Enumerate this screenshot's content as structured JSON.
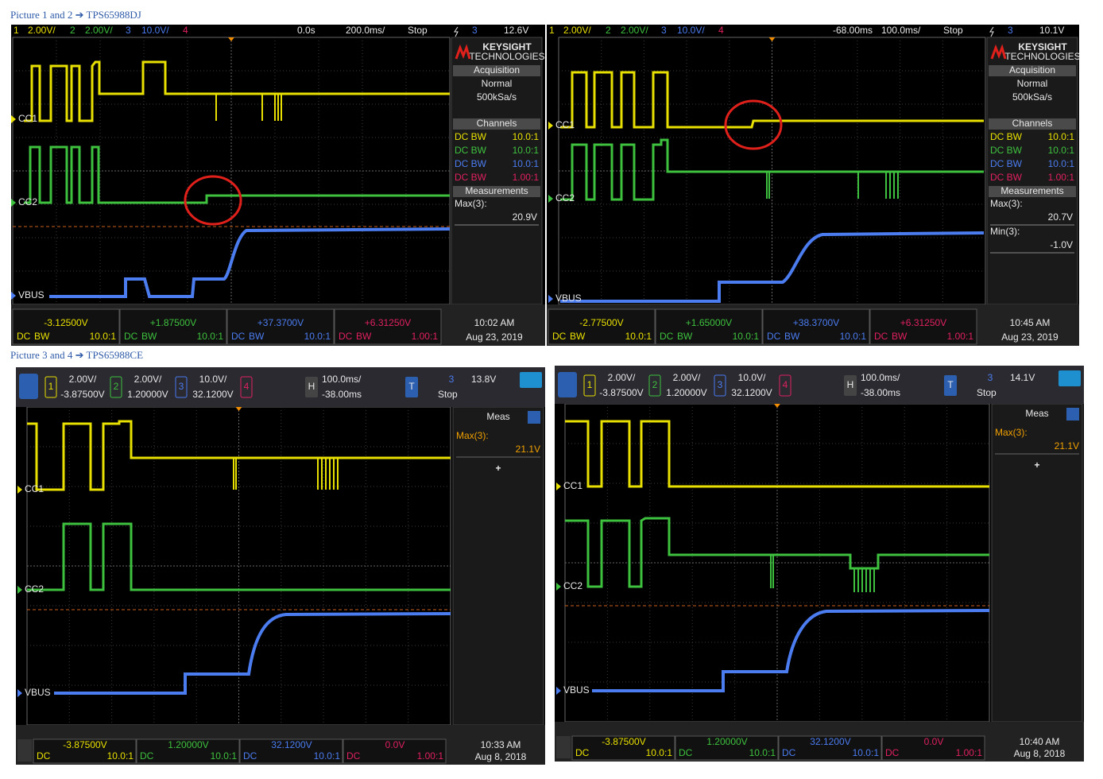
{
  "captions": [
    "Picture 1 and 2 ➔ TPS65988DJ",
    "Picture 3 and 4 ➔ TPS65988CE"
  ],
  "scopes": [
    {
      "style": "classic",
      "header": [
        "1",
        "2.00V/",
        "2",
        "2.00V/",
        "3",
        "10.0V/",
        "4",
        "0.0s",
        "200.0ms/",
        "Stop",
        "3",
        "12.6V"
      ],
      "brand": "KEYSIGHT",
      "brand_sub": "TECHNOLOGIES",
      "acq_title": "Acquisition",
      "acq": [
        "Normal",
        "500kSa/s"
      ],
      "channels_title": "Channels",
      "channels": [
        {
          "label": "DC BW",
          "probe": "10.0:1"
        },
        {
          "label": "DC BW",
          "probe": "10.0:1"
        },
        {
          "label": "DC BW",
          "probe": "10.0:1"
        },
        {
          "label": "DC BW",
          "probe": "1.00:1"
        }
      ],
      "meas_title": "Measurements",
      "meas": [
        {
          "label": "Max(3):",
          "value": "20.9V"
        }
      ],
      "traces": [
        "CC1",
        "CC2",
        "VBUS"
      ],
      "footer": [
        {
          "value": "-3.12500V",
          "coupling": "DC",
          "bw": "BW",
          "probe": "10.0:1"
        },
        {
          "value": "+1.87500V",
          "coupling": "DC",
          "bw": "BW",
          "probe": "10.0:1"
        },
        {
          "value": "+37.3700V",
          "coupling": "DC",
          "bw": "BW",
          "probe": "10.0:1"
        },
        {
          "value": "+6.31250V",
          "coupling": "DC",
          "bw": "BW",
          "probe": "1.00:1"
        }
      ],
      "time": "10:02 AM",
      "date": "Aug 23, 2019"
    },
    {
      "style": "classic",
      "header": [
        "1",
        "2.00V/",
        "2",
        "2.00V/",
        "3",
        "10.0V/",
        "4",
        "-68.00ms",
        "100.0ms/",
        "Stop",
        "3",
        "10.1V"
      ],
      "brand": "KEYSIGHT",
      "brand_sub": "TECHNOLOGIES",
      "acq_title": "Acquisition",
      "acq": [
        "Normal",
        "500kSa/s"
      ],
      "channels_title": "Channels",
      "channels": [
        {
          "label": "DC BW",
          "probe": "10.0:1"
        },
        {
          "label": "DC BW",
          "probe": "10.0:1"
        },
        {
          "label": "DC BW",
          "probe": "10.0:1"
        },
        {
          "label": "DC BW",
          "probe": "1.00:1"
        }
      ],
      "meas_title": "Measurements",
      "meas": [
        {
          "label": "Max(3):",
          "value": "20.7V"
        },
        {
          "label": "Min(3):",
          "value": "-1.0V"
        }
      ],
      "traces": [
        "CC1",
        "CC2",
        "VBUS"
      ],
      "footer": [
        {
          "value": "-2.77500V",
          "coupling": "DC",
          "bw": "BW",
          "probe": "10.0:1"
        },
        {
          "value": "+1.65000V",
          "coupling": "DC",
          "bw": "BW",
          "probe": "10.0:1"
        },
        {
          "value": "+38.3700V",
          "coupling": "DC",
          "bw": "BW",
          "probe": "10.0:1"
        },
        {
          "value": "+6.31250V",
          "coupling": "DC",
          "bw": "BW",
          "probe": "1.00:1"
        }
      ],
      "time": "10:45 AM",
      "date": "Aug 23, 2019"
    },
    {
      "style": "touch",
      "channels": [
        {
          "id": "1",
          "scale": "2.00V/",
          "offset": "-3.87500V"
        },
        {
          "id": "2",
          "scale": "2.00V/",
          "offset": "1.20000V"
        },
        {
          "id": "3",
          "scale": "10.0V/",
          "offset": "32.1200V"
        },
        {
          "id": "4"
        }
      ],
      "horizontal": {
        "id": "H",
        "scale": "100.0ms/",
        "delay": "-38.00ms"
      },
      "trigger": {
        "id": "T",
        "source": "3",
        "level": "13.8V",
        "state": "Stop"
      },
      "meas_title": "Meas",
      "meas": [
        {
          "label": "Max(3):",
          "value": "21.1V"
        }
      ],
      "add": "+",
      "traces": [
        "CC1",
        "CC2",
        "VBUS"
      ],
      "footer": [
        {
          "value": "-3.87500V",
          "coupling": "DC",
          "probe": "10.0:1"
        },
        {
          "value": "1.20000V",
          "coupling": "DC",
          "probe": "10.0:1"
        },
        {
          "value": "32.1200V",
          "coupling": "DC",
          "probe": "10.0:1"
        },
        {
          "value": "0.0V",
          "coupling": "DC",
          "probe": "1.00:1"
        }
      ],
      "time": "10:33 AM",
      "date": "Aug 8, 2018"
    },
    {
      "style": "touch",
      "channels": [
        {
          "id": "1",
          "scale": "2.00V/",
          "offset": "-3.87500V"
        },
        {
          "id": "2",
          "scale": "2.00V/",
          "offset": "1.20000V"
        },
        {
          "id": "3",
          "scale": "10.0V/",
          "offset": "32.1200V"
        },
        {
          "id": "4"
        }
      ],
      "horizontal": {
        "id": "H",
        "scale": "100.0ms/",
        "delay": "-38.00ms"
      },
      "trigger": {
        "id": "T",
        "source": "3",
        "level": "14.1V",
        "state": "Stop"
      },
      "meas_title": "Meas",
      "meas": [
        {
          "label": "Max(3):",
          "value": "21.1V"
        }
      ],
      "add": "+",
      "traces": [
        "CC1",
        "CC2",
        "VBUS"
      ],
      "footer": [
        {
          "value": "-3.87500V",
          "coupling": "DC",
          "probe": "10.0:1"
        },
        {
          "value": "1.20000V",
          "coupling": "DC",
          "probe": "10.0:1"
        },
        {
          "value": "32.1200V",
          "coupling": "DC",
          "probe": "10.0:1"
        },
        {
          "value": "0.0V",
          "coupling": "DC",
          "probe": "1.00:1"
        }
      ],
      "time": "10:40 AM",
      "date": "Aug 8, 2018"
    }
  ]
}
